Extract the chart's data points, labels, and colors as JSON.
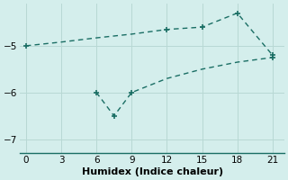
{
  "xlabel": "Humidex (Indice chaleur)",
  "background_color": "#d4eeec",
  "line_color": "#1a6e64",
  "grid_color": "#b8d8d4",
  "line1_x": [
    0,
    12,
    15,
    18,
    21
  ],
  "line1_y": [
    -5.0,
    -4.65,
    -4.6,
    -4.3,
    -5.2
  ],
  "line1_full_x": [
    0,
    3,
    6,
    9,
    12,
    15,
    18,
    21
  ],
  "line1_full_y": [
    -5.0,
    -4.92,
    -4.83,
    -4.75,
    -4.65,
    -4.6,
    -4.3,
    -5.2
  ],
  "line2_x": [
    6,
    7.5,
    9,
    21
  ],
  "line2_y": [
    -6.0,
    -6.5,
    -6.0,
    -5.25
  ],
  "line2_full_x": [
    6,
    7.5,
    9,
    12,
    15,
    18,
    21
  ],
  "line2_full_y": [
    -6.0,
    -6.5,
    -6.0,
    -5.7,
    -5.5,
    -5.35,
    -5.25
  ],
  "xlim": [
    -0.5,
    22
  ],
  "ylim": [
    -7.3,
    -4.1
  ],
  "xticks": [
    0,
    3,
    6,
    9,
    12,
    15,
    18,
    21
  ],
  "yticks": [
    -7,
    -6,
    -5
  ],
  "tick_fontsize": 7.5,
  "label_fontsize": 8
}
